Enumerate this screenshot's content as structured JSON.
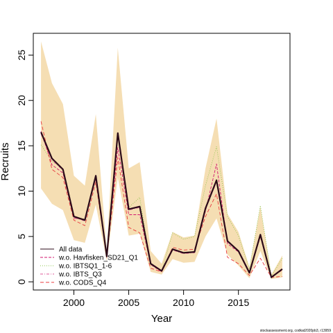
{
  "chart_data": {
    "type": "line",
    "xlabel": "Year",
    "ylabel": "Recruits",
    "xlim": [
      1996.3,
      2019.7
    ],
    "ylim": [
      -0.9,
      27.4
    ],
    "x_ticks": [
      2000,
      2005,
      2010,
      2015
    ],
    "x_tick_labels": [
      "2000",
      "2005",
      "2010",
      "2015"
    ],
    "y_ticks": [
      0,
      5,
      10,
      15,
      20,
      25
    ],
    "y_tick_labels": [
      "0",
      "5",
      "10",
      "15",
      "20",
      "25"
    ],
    "grid": false,
    "legend_position": "bottom-left",
    "x": [
      1997,
      1998,
      1999,
      2000,
      2001,
      2002,
      2003,
      2004,
      2005,
      2006,
      2007,
      2008,
      2009,
      2010,
      2011,
      2012,
      2013,
      2014,
      2015,
      2016,
      2017,
      2018,
      2019
    ],
    "band": {
      "color": "#f5deb3",
      "lower": [
        10.3,
        8.6,
        7.9,
        4.6,
        4.3,
        8.5,
        2.3,
        11.5,
        5.1,
        5.3,
        1.1,
        0.8,
        2.5,
        2.1,
        2.2,
        5.0,
        7.0,
        3.0,
        1.8,
        0.4,
        3.4,
        0.3,
        0.5
      ],
      "upper": [
        26.5,
        21.9,
        19.6,
        11.7,
        10.6,
        18.5,
        3.4,
        25.8,
        12.5,
        13.2,
        3.4,
        2.0,
        5.5,
        4.9,
        5.1,
        12.5,
        18.0,
        7.5,
        5.5,
        1.6,
        8.3,
        0.8,
        2.9
      ]
    },
    "series": [
      {
        "name": "All data",
        "color": "#2b0a18",
        "dash": "solid",
        "width": 2.2,
        "values": [
          16.5,
          13.6,
          12.4,
          7.2,
          6.8,
          11.7,
          2.8,
          16.4,
          8.0,
          8.3,
          2.0,
          1.2,
          3.6,
          3.2,
          3.3,
          8.1,
          11.2,
          4.5,
          3.4,
          1.0,
          5.2,
          0.5,
          1.4
        ]
      },
      {
        "name": "w.o. Havfisken_SD21_Q1",
        "color": "#d0156e",
        "dash": "4,2",
        "width": 0.9,
        "values": [
          16.6,
          12.9,
          12.0,
          7.0,
          6.9,
          11.4,
          2.9,
          14.8,
          7.4,
          7.4,
          1.9,
          1.1,
          3.6,
          3.2,
          3.3,
          7.8,
          13.0,
          4.2,
          3.3,
          1.0,
          5.0,
          0.5,
          1.3
        ]
      },
      {
        "name": "w.o. IBTSQ1_1-6",
        "color": "#8bc34a",
        "dash": "1,2",
        "width": 0.9,
        "values": [
          15.1,
          13.3,
          12.5,
          7.2,
          6.9,
          11.6,
          2.9,
          16.5,
          8.2,
          9.3,
          1.9,
          1.2,
          5.4,
          4.7,
          5.0,
          10.6,
          14.9,
          7.2,
          5.1,
          1.4,
          8.4,
          0.6,
          2.6
        ]
      },
      {
        "name": "w.o. IBTS_Q3",
        "color": "#e05a9a",
        "dash": "4,2,1,2",
        "width": 0.9,
        "values": [
          16.3,
          13.4,
          12.3,
          7.1,
          6.7,
          11.6,
          2.8,
          16.3,
          7.9,
          8.2,
          1.9,
          1.2,
          3.5,
          3.1,
          3.2,
          8.0,
          11.0,
          4.4,
          3.4,
          1.0,
          5.1,
          0.5,
          1.4
        ]
      },
      {
        "name": "w.o. CODS_Q4",
        "color": "#e8383d",
        "dash": "5,3",
        "width": 0.9,
        "values": [
          17.7,
          12.4,
          11.5,
          6.8,
          6.2,
          11.0,
          2.7,
          13.7,
          6.0,
          5.4,
          1.5,
          1.1,
          3.8,
          3.5,
          3.6,
          7.2,
          9.7,
          2.7,
          2.0,
          0.7,
          2.6,
          0.5,
          0.6
        ]
      }
    ],
    "footnote": "stockassessment.org, codkat2020pb3, r13959"
  }
}
